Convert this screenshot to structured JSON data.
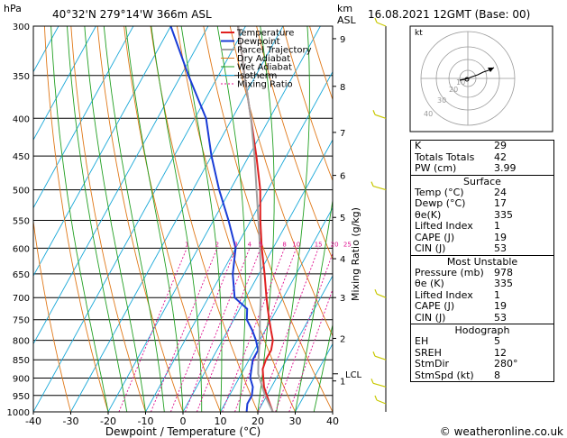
{
  "header": {
    "hpa_label": "hPa",
    "location": "40°32'N  279°14'W  366m  ASL",
    "km_label": "km",
    "asl_label": "ASL",
    "datetime": "16.08.2021  12GMT  (Base: 00)"
  },
  "footer": {
    "copyright": "© weatheronline.co.uk"
  },
  "colors": {
    "temperature": "#e02020",
    "dewpoint": "#1a3cd6",
    "parcel": "#a0a0a0",
    "dry_adiabat": "#e07818",
    "wet_adiabat": "#22a022",
    "isotherm": "#19a8d8",
    "mixing_ratio": "#e01090",
    "wind_barb": "#c8c800"
  },
  "hodograph": {
    "label": "kt",
    "ring_labels": [
      "10",
      "20",
      "30",
      "40"
    ]
  },
  "stats": {
    "top": [
      {
        "label": "K",
        "value": "29"
      },
      {
        "label": "Totals Totals",
        "value": "42"
      },
      {
        "label": "PW (cm)",
        "value": "3.99"
      }
    ],
    "surface": {
      "title": "Surface",
      "rows": [
        {
          "label": "Temp (°C)",
          "value": "24"
        },
        {
          "label": "Dewp (°C)",
          "value": "17"
        },
        {
          "label": "θe(K)",
          "value": "335"
        },
        {
          "label": "Lifted Index",
          "value": "1"
        },
        {
          "label": "CAPE (J)",
          "value": "19"
        },
        {
          "label": "CIN (J)",
          "value": "53"
        }
      ]
    },
    "unstable": {
      "title": "Most Unstable",
      "rows": [
        {
          "label": "Pressure (mb)",
          "value": "978"
        },
        {
          "label": "θe (K)",
          "value": "335"
        },
        {
          "label": "Lifted Index",
          "value": "1"
        },
        {
          "label": "CAPE (J)",
          "value": "19"
        },
        {
          "label": "CIN (J)",
          "value": "53"
        }
      ]
    },
    "hodograph": {
      "title": "Hodograph",
      "rows": [
        {
          "label": "EH",
          "value": "5"
        },
        {
          "label": "SREH",
          "value": "12"
        },
        {
          "label": "StmDir",
          "value": "280°"
        },
        {
          "label": "StmSpd (kt)",
          "value": "8"
        }
      ]
    }
  },
  "chart_data": {
    "type": "line",
    "subtype": "skew-T log-P diagram",
    "xlabel": "Dewpoint / Temperature (°C)",
    "ylabel": "hPa",
    "mixing_ratio_axis_label": "Mixing Ratio (g/kg)",
    "xlim": [
      -40,
      40
    ],
    "ylim": [
      1000,
      300
    ],
    "y_scale": "log",
    "x_ticks": [
      -40,
      -30,
      -20,
      -10,
      0,
      10,
      20,
      30,
      40
    ],
    "pressure_ticks": [
      300,
      350,
      400,
      450,
      500,
      550,
      600,
      650,
      700,
      750,
      800,
      850,
      900,
      950,
      1000
    ],
    "km_ticks": [
      {
        "km": "1",
        "p": 908
      },
      {
        "km": "2",
        "p": 795
      },
      {
        "km": "3",
        "p": 700
      },
      {
        "km": "4",
        "p": 620
      },
      {
        "km": "5",
        "p": 545
      },
      {
        "km": "6",
        "p": 478
      },
      {
        "km": "7",
        "p": 418
      },
      {
        "km": "8",
        "p": 362
      },
      {
        "km": "9",
        "p": 312
      }
    ],
    "lcl": {
      "label": "LCL",
      "p": 888
    },
    "mixing_ratio_labels": [
      "1",
      "2",
      "3",
      "4",
      "5",
      "8",
      "10",
      "15",
      "20",
      "25"
    ],
    "mixing_ratio_values": [
      1,
      2,
      3,
      4,
      5,
      8,
      10,
      15,
      20,
      25
    ],
    "legend": [
      "Temperature",
      "Dewpoint",
      "Parcel Trajectory",
      "Dry Adiabat",
      "Wet Adiabat",
      "Isotherm",
      "Mixing Ratio"
    ],
    "legend_position": "top-left",
    "series": [
      {
        "name": "Temperature",
        "p": [
          1000,
          975,
          950,
          925,
          900,
          875,
          850,
          825,
          800,
          775,
          750,
          725,
          700,
          650,
          600,
          550,
          500,
          450,
          400,
          350,
          300
        ],
        "t": [
          24,
          22,
          20,
          18,
          16.5,
          15,
          14.5,
          14.5,
          13.5,
          11.5,
          9.5,
          7.5,
          5.5,
          1.5,
          -3,
          -7.5,
          -12,
          -18,
          -25,
          -33,
          -42
        ]
      },
      {
        "name": "Dewpoint",
        "p": [
          1000,
          975,
          950,
          925,
          900,
          875,
          850,
          825,
          800,
          775,
          750,
          725,
          700,
          650,
          600,
          550,
          500,
          450,
          400,
          350,
          300
        ],
        "t": [
          17,
          16,
          16,
          15,
          13,
          12,
          11,
          11,
          9,
          6.5,
          3.5,
          2,
          -3,
          -7,
          -10,
          -16,
          -23,
          -30,
          -37,
          -48,
          -60
        ]
      },
      {
        "name": "Parcel Trajectory",
        "p": [
          1000,
          950,
          900,
          888,
          850,
          800,
          750,
          700,
          650,
          600,
          550,
          500,
          450,
          400,
          350,
          300
        ],
        "t": [
          24,
          19.5,
          15.5,
          14.5,
          12.5,
          10,
          7,
          4,
          0.5,
          -3.5,
          -8,
          -13,
          -18.5,
          -25,
          -33,
          -42
        ]
      }
    ],
    "wind_barbs_p": [
      300,
      400,
      500,
      700,
      850,
      925,
      975
    ]
  }
}
